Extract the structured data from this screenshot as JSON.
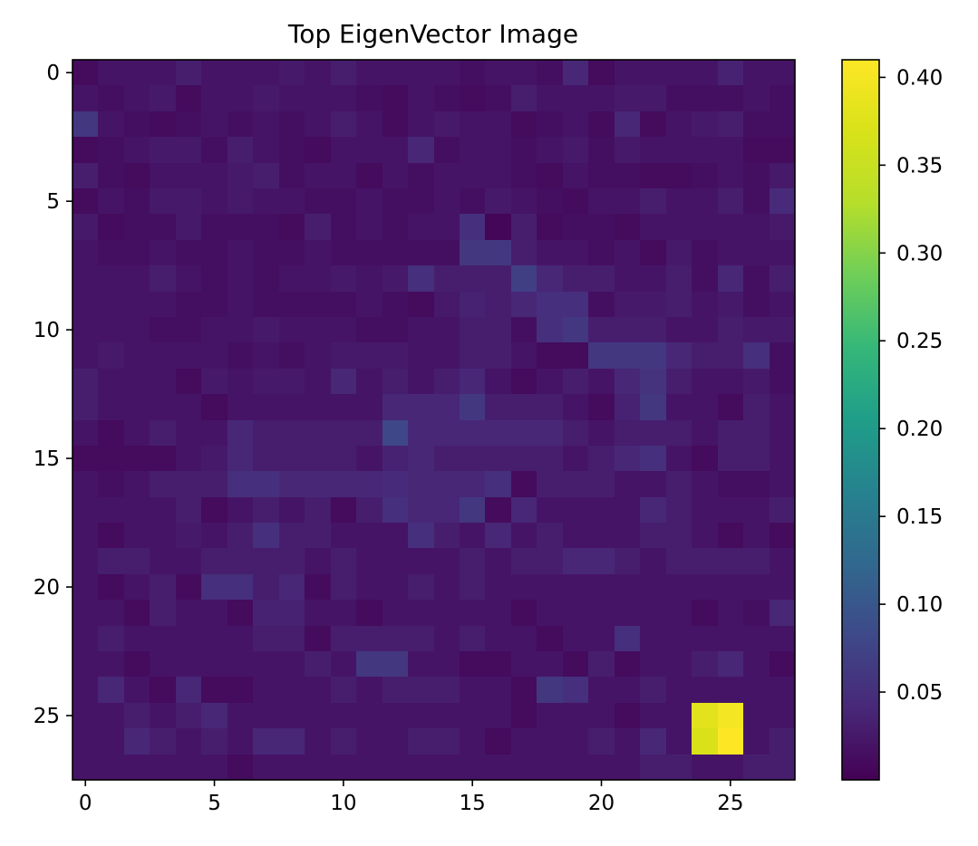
{
  "chart_data": {
    "type": "heatmap",
    "title": "Top EigenVector Image",
    "xlabel": "",
    "ylabel": "",
    "grid": false,
    "colormap": "viridis",
    "rows": 28,
    "cols": 28,
    "xlim": [
      -0.5,
      27.5
    ],
    "ylim": [
      27.5,
      -0.5
    ],
    "x_ticks": [
      0,
      5,
      10,
      15,
      20,
      25
    ],
    "y_ticks": [
      0,
      5,
      10,
      15,
      20,
      25
    ],
    "colorbar": {
      "vmin": 0.0,
      "vmax": 0.41,
      "ticks": [
        0.05,
        0.1,
        0.15,
        0.2,
        0.25,
        0.3,
        0.35,
        0.4
      ],
      "tick_labels": [
        "0.05",
        "0.10",
        "0.15",
        "0.20",
        "0.25",
        "0.30",
        "0.35",
        "0.40"
      ]
    },
    "background_value_range": [
      0.0,
      0.07
    ],
    "values": [
      [
        0.01,
        0.02,
        0.02,
        0.02,
        0.03,
        0.02,
        0.02,
        0.02,
        0.025,
        0.02,
        0.03,
        0.02,
        0.02,
        0.02,
        0.02,
        0.015,
        0.02,
        0.02,
        0.015,
        0.04,
        0.01,
        0.02,
        0.02,
        0.02,
        0.02,
        0.035,
        0.02,
        0.02
      ],
      [
        0.02,
        0.015,
        0.02,
        0.025,
        0.01,
        0.02,
        0.02,
        0.025,
        0.02,
        0.02,
        0.02,
        0.015,
        0.01,
        0.02,
        0.015,
        0.01,
        0.015,
        0.03,
        0.02,
        0.02,
        0.02,
        0.025,
        0.025,
        0.015,
        0.015,
        0.015,
        0.02,
        0.015
      ],
      [
        0.06,
        0.02,
        0.015,
        0.01,
        0.015,
        0.02,
        0.015,
        0.02,
        0.015,
        0.02,
        0.03,
        0.02,
        0.01,
        0.02,
        0.025,
        0.02,
        0.02,
        0.01,
        0.015,
        0.02,
        0.01,
        0.04,
        0.01,
        0.02,
        0.025,
        0.03,
        0.015,
        0.015
      ],
      [
        0.01,
        0.015,
        0.02,
        0.025,
        0.025,
        0.015,
        0.03,
        0.02,
        0.015,
        0.01,
        0.02,
        0.02,
        0.02,
        0.04,
        0.015,
        0.02,
        0.02,
        0.015,
        0.02,
        0.025,
        0.015,
        0.025,
        0.02,
        0.02,
        0.02,
        0.02,
        0.01,
        0.01
      ],
      [
        0.03,
        0.015,
        0.01,
        0.02,
        0.02,
        0.02,
        0.025,
        0.03,
        0.015,
        0.02,
        0.02,
        0.01,
        0.02,
        0.015,
        0.02,
        0.02,
        0.02,
        0.015,
        0.01,
        0.02,
        0.015,
        0.015,
        0.01,
        0.01,
        0.015,
        0.02,
        0.015,
        0.025
      ],
      [
        0.01,
        0.02,
        0.015,
        0.025,
        0.025,
        0.02,
        0.025,
        0.02,
        0.02,
        0.015,
        0.015,
        0.02,
        0.015,
        0.015,
        0.02,
        0.015,
        0.025,
        0.02,
        0.015,
        0.01,
        0.02,
        0.02,
        0.03,
        0.02,
        0.02,
        0.03,
        0.015,
        0.045
      ],
      [
        0.025,
        0.01,
        0.015,
        0.015,
        0.025,
        0.015,
        0.015,
        0.015,
        0.01,
        0.03,
        0.015,
        0.02,
        0.015,
        0.02,
        0.02,
        0.05,
        0.005,
        0.03,
        0.01,
        0.015,
        0.015,
        0.01,
        0.02,
        0.02,
        0.02,
        0.02,
        0.02,
        0.025
      ],
      [
        0.02,
        0.015,
        0.015,
        0.02,
        0.015,
        0.015,
        0.02,
        0.015,
        0.015,
        0.02,
        0.015,
        0.015,
        0.015,
        0.015,
        0.015,
        0.06,
        0.06,
        0.03,
        0.02,
        0.02,
        0.015,
        0.02,
        0.01,
        0.025,
        0.015,
        0.02,
        0.02,
        0.02
      ],
      [
        0.02,
        0.02,
        0.02,
        0.03,
        0.02,
        0.015,
        0.02,
        0.015,
        0.02,
        0.02,
        0.025,
        0.02,
        0.025,
        0.05,
        0.03,
        0.03,
        0.03,
        0.07,
        0.04,
        0.03,
        0.03,
        0.02,
        0.02,
        0.03,
        0.015,
        0.04,
        0.015,
        0.03
      ],
      [
        0.02,
        0.02,
        0.02,
        0.02,
        0.015,
        0.015,
        0.02,
        0.015,
        0.015,
        0.015,
        0.015,
        0.02,
        0.015,
        0.01,
        0.025,
        0.035,
        0.03,
        0.04,
        0.05,
        0.05,
        0.015,
        0.025,
        0.025,
        0.03,
        0.02,
        0.025,
        0.015,
        0.02
      ],
      [
        0.02,
        0.02,
        0.02,
        0.015,
        0.015,
        0.02,
        0.02,
        0.025,
        0.02,
        0.02,
        0.02,
        0.015,
        0.015,
        0.02,
        0.02,
        0.03,
        0.03,
        0.015,
        0.05,
        0.06,
        0.03,
        0.03,
        0.03,
        0.02,
        0.02,
        0.03,
        0.025,
        0.025
      ],
      [
        0.02,
        0.025,
        0.02,
        0.02,
        0.02,
        0.02,
        0.015,
        0.02,
        0.015,
        0.02,
        0.025,
        0.025,
        0.025,
        0.02,
        0.02,
        0.03,
        0.03,
        0.02,
        0.01,
        0.01,
        0.06,
        0.06,
        0.06,
        0.04,
        0.03,
        0.03,
        0.05,
        0.015
      ],
      [
        0.03,
        0.02,
        0.02,
        0.02,
        0.01,
        0.025,
        0.02,
        0.025,
        0.025,
        0.02,
        0.04,
        0.02,
        0.03,
        0.02,
        0.03,
        0.04,
        0.02,
        0.01,
        0.02,
        0.03,
        0.02,
        0.04,
        0.055,
        0.03,
        0.02,
        0.02,
        0.025,
        0.015
      ],
      [
        0.03,
        0.02,
        0.02,
        0.02,
        0.02,
        0.01,
        0.02,
        0.02,
        0.02,
        0.02,
        0.02,
        0.02,
        0.04,
        0.04,
        0.04,
        0.06,
        0.03,
        0.03,
        0.03,
        0.02,
        0.01,
        0.035,
        0.06,
        0.02,
        0.02,
        0.01,
        0.03,
        0.02
      ],
      [
        0.02,
        0.01,
        0.02,
        0.03,
        0.02,
        0.02,
        0.04,
        0.03,
        0.03,
        0.03,
        0.03,
        0.03,
        0.08,
        0.04,
        0.04,
        0.04,
        0.04,
        0.04,
        0.04,
        0.03,
        0.02,
        0.03,
        0.03,
        0.03,
        0.02,
        0.03,
        0.03,
        0.02
      ],
      [
        0.01,
        0.01,
        0.01,
        0.01,
        0.02,
        0.025,
        0.04,
        0.03,
        0.03,
        0.03,
        0.03,
        0.02,
        0.035,
        0.04,
        0.03,
        0.03,
        0.03,
        0.03,
        0.03,
        0.02,
        0.03,
        0.04,
        0.05,
        0.02,
        0.01,
        0.03,
        0.03,
        0.02
      ],
      [
        0.02,
        0.015,
        0.02,
        0.03,
        0.03,
        0.03,
        0.05,
        0.05,
        0.04,
        0.04,
        0.04,
        0.04,
        0.045,
        0.04,
        0.04,
        0.04,
        0.05,
        0.01,
        0.03,
        0.03,
        0.03,
        0.02,
        0.02,
        0.03,
        0.02,
        0.015,
        0.015,
        0.02
      ],
      [
        0.02,
        0.02,
        0.02,
        0.02,
        0.03,
        0.01,
        0.02,
        0.03,
        0.02,
        0.03,
        0.01,
        0.03,
        0.05,
        0.04,
        0.04,
        0.06,
        0.01,
        0.04,
        0.02,
        0.02,
        0.02,
        0.02,
        0.04,
        0.03,
        0.02,
        0.02,
        0.02,
        0.03
      ],
      [
        0.02,
        0.01,
        0.02,
        0.02,
        0.025,
        0.02,
        0.03,
        0.05,
        0.03,
        0.03,
        0.02,
        0.02,
        0.02,
        0.05,
        0.03,
        0.02,
        0.04,
        0.02,
        0.03,
        0.02,
        0.02,
        0.02,
        0.03,
        0.03,
        0.02,
        0.01,
        0.02,
        0.01
      ],
      [
        0.02,
        0.03,
        0.03,
        0.02,
        0.02,
        0.03,
        0.03,
        0.03,
        0.03,
        0.02,
        0.03,
        0.02,
        0.02,
        0.02,
        0.02,
        0.03,
        0.02,
        0.03,
        0.03,
        0.04,
        0.04,
        0.03,
        0.02,
        0.03,
        0.03,
        0.03,
        0.03,
        0.02
      ],
      [
        0.02,
        0.01,
        0.02,
        0.03,
        0.01,
        0.05,
        0.05,
        0.03,
        0.04,
        0.01,
        0.03,
        0.02,
        0.02,
        0.03,
        0.02,
        0.03,
        0.02,
        0.02,
        0.02,
        0.02,
        0.02,
        0.02,
        0.02,
        0.02,
        0.02,
        0.02,
        0.02,
        0.02
      ],
      [
        0.02,
        0.02,
        0.01,
        0.03,
        0.02,
        0.02,
        0.01,
        0.035,
        0.035,
        0.02,
        0.02,
        0.01,
        0.02,
        0.02,
        0.02,
        0.02,
        0.02,
        0.01,
        0.02,
        0.02,
        0.02,
        0.02,
        0.02,
        0.02,
        0.01,
        0.02,
        0.015,
        0.04
      ],
      [
        0.02,
        0.03,
        0.02,
        0.02,
        0.02,
        0.02,
        0.02,
        0.03,
        0.03,
        0.01,
        0.03,
        0.03,
        0.03,
        0.03,
        0.02,
        0.03,
        0.02,
        0.02,
        0.01,
        0.02,
        0.02,
        0.05,
        0.02,
        0.02,
        0.02,
        0.02,
        0.02,
        0.02
      ],
      [
        0.02,
        0.02,
        0.01,
        0.02,
        0.02,
        0.02,
        0.02,
        0.02,
        0.02,
        0.03,
        0.02,
        0.06,
        0.06,
        0.02,
        0.02,
        0.01,
        0.01,
        0.02,
        0.02,
        0.01,
        0.03,
        0.01,
        0.02,
        0.02,
        0.03,
        0.04,
        0.02,
        0.01
      ],
      [
        0.02,
        0.04,
        0.02,
        0.01,
        0.04,
        0.01,
        0.01,
        0.02,
        0.02,
        0.02,
        0.03,
        0.02,
        0.03,
        0.03,
        0.03,
        0.02,
        0.02,
        0.01,
        0.06,
        0.05,
        0.02,
        0.02,
        0.03,
        0.02,
        0.02,
        0.02,
        0.02,
        0.02
      ],
      [
        0.02,
        0.02,
        0.03,
        0.02,
        0.03,
        0.04,
        0.02,
        0.02,
        0.02,
        0.02,
        0.02,
        0.02,
        0.02,
        0.02,
        0.02,
        0.02,
        0.02,
        0.01,
        0.02,
        0.02,
        0.02,
        0.01,
        0.02,
        0.02,
        0.38,
        0.4,
        0.02,
        0.02
      ],
      [
        0.02,
        0.02,
        0.04,
        0.03,
        0.02,
        0.03,
        0.02,
        0.04,
        0.04,
        0.02,
        0.03,
        0.02,
        0.02,
        0.03,
        0.03,
        0.02,
        0.01,
        0.02,
        0.02,
        0.02,
        0.03,
        0.02,
        0.04,
        0.02,
        0.37,
        0.41,
        0.02,
        0.03
      ],
      [
        0.02,
        0.02,
        0.02,
        0.02,
        0.02,
        0.02,
        0.01,
        0.02,
        0.02,
        0.02,
        0.02,
        0.02,
        0.02,
        0.02,
        0.02,
        0.02,
        0.02,
        0.02,
        0.02,
        0.02,
        0.02,
        0.02,
        0.03,
        0.03,
        0.02,
        0.02,
        0.03,
        0.03
      ]
    ]
  }
}
